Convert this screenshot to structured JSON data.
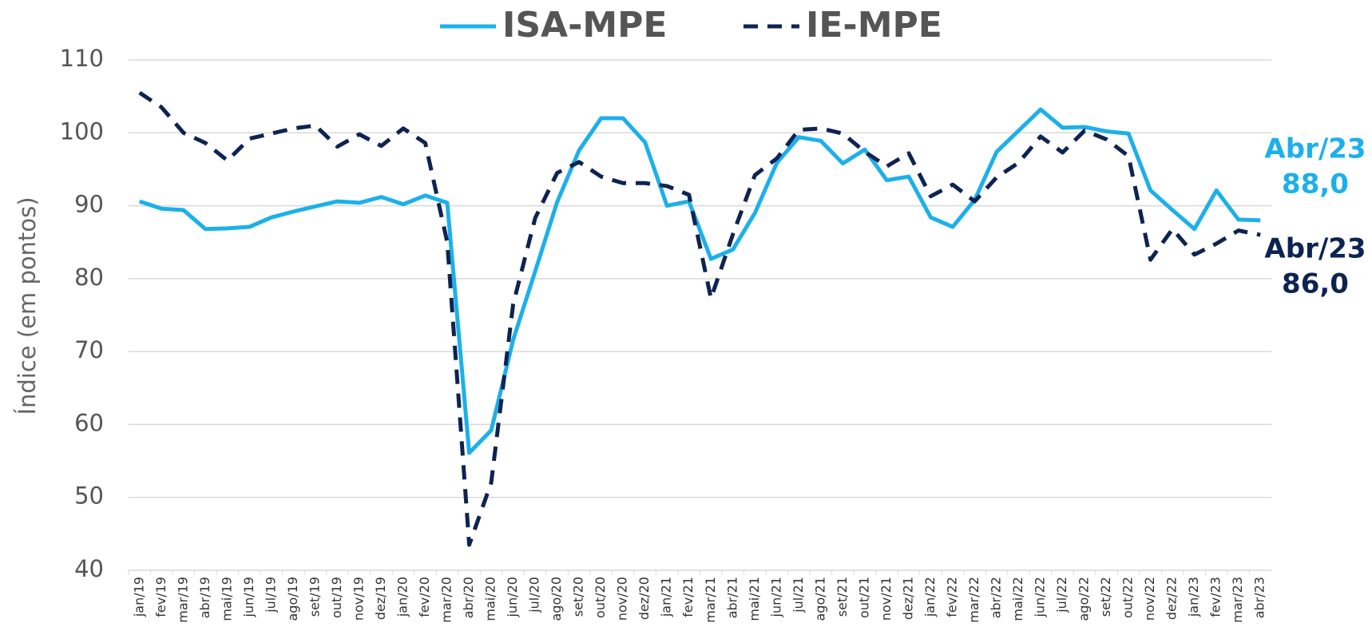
{
  "chart_data": {
    "type": "line",
    "y_label": "Índice (em pontos)",
    "categories": [
      "jan/19",
      "fev/19",
      "mar/19",
      "abr/19",
      "mai/19",
      "jun/19",
      "jul/19",
      "ago/19",
      "set/19",
      "out/19",
      "nov/19",
      "dez/19",
      "jan/20",
      "fev/20",
      "mar/20",
      "abr/20",
      "mai/20",
      "jun/20",
      "jul/20",
      "ago/20",
      "set/20",
      "out/20",
      "nov/20",
      "dez/20",
      "jan/21",
      "fev/21",
      "mar/21",
      "abr/21",
      "mai/21",
      "jun/21",
      "jul/21",
      "ago/21",
      "set/21",
      "out/21",
      "nov/21",
      "dez/21",
      "jan/22",
      "fev/22",
      "mar/22",
      "abr/22",
      "mai/22",
      "jun/22",
      "jul/22",
      "ago/22",
      "set/22",
      "out/22",
      "nov/22",
      "dez/22",
      "jan/23",
      "fev/23",
      "mar/23",
      "abr/23"
    ],
    "series": [
      {
        "name": "ISA-MPE",
        "color": "#1cb0ea",
        "dash": false,
        "values": [
          90.6,
          89.6,
          89.4,
          86.8,
          86.9,
          87.1,
          88.4,
          89.2,
          89.9,
          90.6,
          90.4,
          91.2,
          90.2,
          91.4,
          90.4,
          56.1,
          59.2,
          71.6,
          81,
          90.5,
          97.6,
          102,
          102,
          98.7,
          90,
          90.6,
          82.7,
          84,
          89,
          95.9,
          99.4,
          98.9,
          95.8,
          97.7,
          93.5,
          94,
          88.4,
          87.1,
          90.8,
          97.4,
          100.3,
          103.2,
          100.7,
          100.8,
          100.2,
          99.9,
          92.1,
          89.4,
          86.8,
          92.1,
          88.1,
          88.0
        ]
      },
      {
        "name": "IE-MPE",
        "color": "#0d2352",
        "dash": true,
        "values": [
          105.5,
          103.5,
          100,
          98.6,
          96.2,
          99.2,
          99.9,
          100.6,
          101,
          98.1,
          99.8,
          98.2,
          100.6,
          98.6,
          85,
          43.5,
          52,
          76.5,
          88.3,
          94.5,
          96,
          94,
          93.1,
          93.1,
          92.7,
          91.5,
          77.3,
          86.1,
          94.2,
          96.5,
          100.4,
          100.6,
          99.9,
          97.4,
          95.4,
          97.2,
          91.3,
          92.9,
          90.6,
          93.9,
          95.9,
          99.5,
          97.3,
          100.3,
          99.1,
          96.8,
          82.6,
          86.8,
          83.3,
          84.8,
          86.6,
          86.0
        ]
      }
    ],
    "annotations": [
      {
        "label": "Abr/23",
        "value_label": "88,0",
        "value": 88.0,
        "color": "#1cb0ea"
      },
      {
        "label": "Abr/23",
        "value_label": "86,0",
        "value": 86.0,
        "color": "#0d2352"
      }
    ],
    "ylim": [
      40,
      110
    ],
    "yticks": [
      40,
      50,
      60,
      70,
      80,
      90,
      100,
      110
    ],
    "grid": true
  }
}
